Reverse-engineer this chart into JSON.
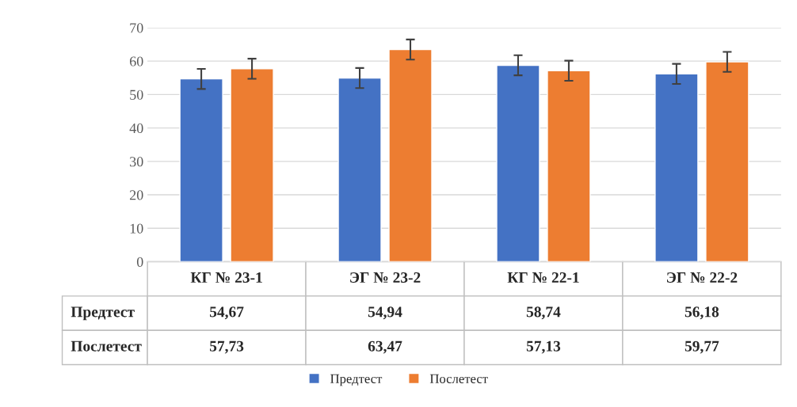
{
  "chart_data": {
    "type": "bar",
    "categories": [
      "КГ № 23-1",
      "ЭГ № 23-2",
      "КГ № 22-1",
      "ЭГ № 22-2"
    ],
    "series": [
      {
        "name": "Предтест",
        "color": "#4472c4",
        "values": [
          54.67,
          54.94,
          58.74,
          56.18
        ],
        "errors": [
          3,
          3,
          3,
          3
        ],
        "value_labels": [
          "54,67",
          "54,94",
          "58,74",
          "56,18"
        ]
      },
      {
        "name": "Послетест",
        "color": "#ed7d31",
        "values": [
          57.73,
          63.47,
          57.13,
          59.77
        ],
        "errors": [
          3,
          3,
          3,
          3
        ],
        "value_labels": [
          "57,73",
          "63,47",
          "57,13",
          "59,77"
        ]
      }
    ],
    "ylim": [
      0,
      70
    ],
    "yticks": [
      0,
      10,
      20,
      30,
      40,
      50,
      60,
      70
    ],
    "grid": "y",
    "legend": "bottom"
  }
}
